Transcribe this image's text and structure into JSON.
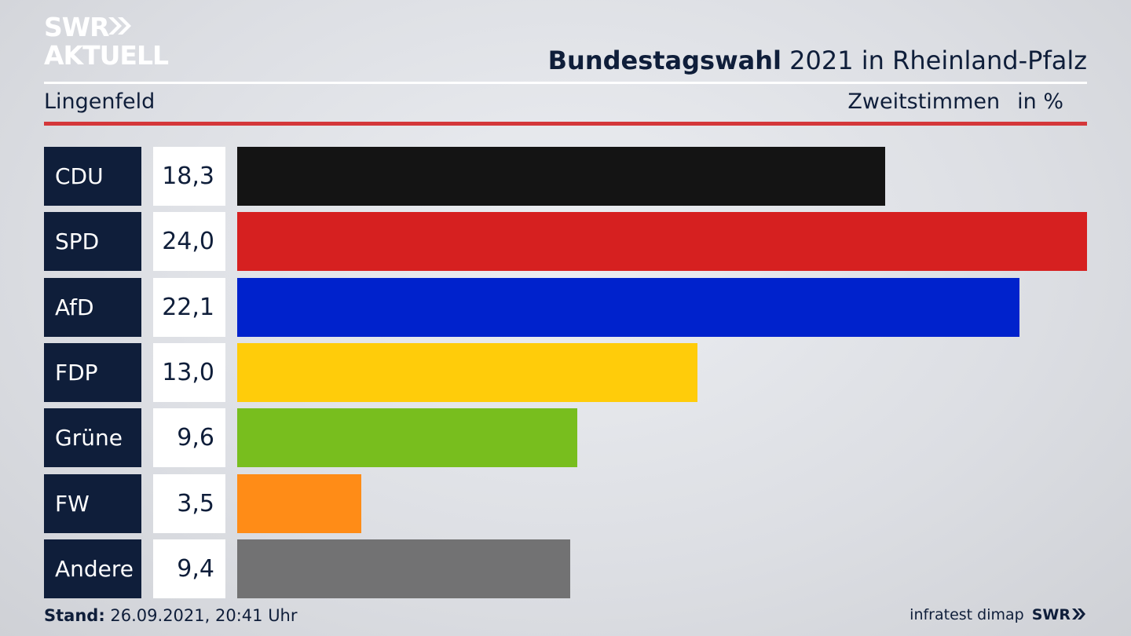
{
  "brand": {
    "logo_line1": "SWR",
    "logo_line2": "AKTUELL",
    "footer_source": "infratest dimap",
    "footer_brand": "SWR"
  },
  "header": {
    "title_bold": "Bundestagswahl",
    "title_rest": "2021 in Rheinland-Pfalz",
    "region": "Lingenfeld",
    "measure": "Zweitstimmen",
    "unit": "in %"
  },
  "footer": {
    "stand_label": "Stand:",
    "stand_value": "26.09.2021, 20:41 Uhr"
  },
  "colors": {
    "navy": "#0f1e3a",
    "rule_red": "#d4373a"
  },
  "chart_data": {
    "type": "bar",
    "orientation": "horizontal",
    "categories": [
      "CDU",
      "SPD",
      "AfD",
      "FDP",
      "Grüne",
      "FW",
      "Andere"
    ],
    "values": [
      18.3,
      24.0,
      22.1,
      13.0,
      9.6,
      3.5,
      9.4
    ],
    "value_labels": [
      "18,3",
      "24,0",
      "22,1",
      "13,0",
      "9,6",
      "3,5",
      "9,4"
    ],
    "bar_colors": [
      "#141414",
      "#d62020",
      "#0022cc",
      "#ffcc0a",
      "#78be1e",
      "#ff8c17",
      "#727273"
    ],
    "title": "Bundestagswahl 2021 in Rheinland-Pfalz",
    "xlim": [
      0,
      24.0
    ],
    "grid": false,
    "legend": "none"
  }
}
